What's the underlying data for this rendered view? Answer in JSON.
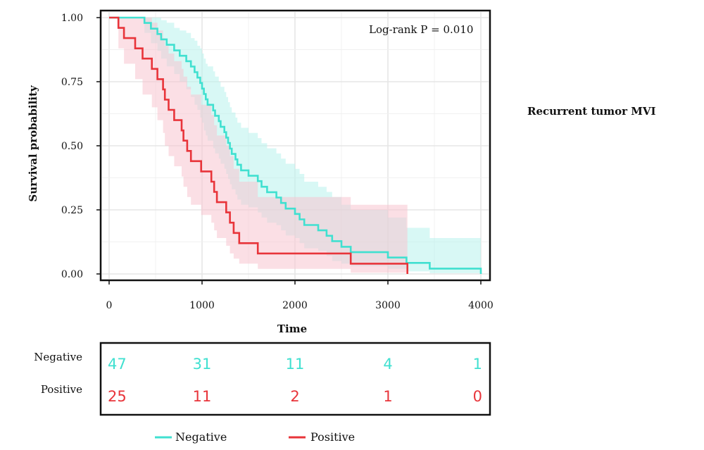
{
  "chart_data": {
    "type": "line",
    "subtype": "kaplan-meier",
    "title": "",
    "side_title": "Recurrent tumor MVI",
    "xlabel": "Time",
    "ylabel": "Survival probability",
    "xlim": [
      0,
      4000
    ],
    "ylim": [
      0,
      1
    ],
    "x_ticks": [
      "0",
      "1000",
      "2000",
      "3000",
      "4000"
    ],
    "y_ticks": [
      "0.00",
      "0.25",
      "0.50",
      "0.75",
      "1.00"
    ],
    "grid": true,
    "annotation": "Log-rank P = 0.010",
    "legend_position": "bottom",
    "series": [
      {
        "name": "Negative",
        "color": "#40E0D0",
        "band_color": "#B8F3EC",
        "steps": [
          [
            0,
            1.0
          ],
          [
            380,
            0.979
          ],
          [
            450,
            0.957
          ],
          [
            520,
            0.936
          ],
          [
            560,
            0.915
          ],
          [
            620,
            0.894
          ],
          [
            700,
            0.872
          ],
          [
            760,
            0.851
          ],
          [
            830,
            0.83
          ],
          [
            880,
            0.809
          ],
          [
            920,
            0.787
          ],
          [
            950,
            0.766
          ],
          [
            980,
            0.745
          ],
          [
            1000,
            0.723
          ],
          [
            1020,
            0.702
          ],
          [
            1040,
            0.681
          ],
          [
            1060,
            0.66
          ],
          [
            1120,
            0.638
          ],
          [
            1140,
            0.617
          ],
          [
            1180,
            0.596
          ],
          [
            1200,
            0.574
          ],
          [
            1240,
            0.553
          ],
          [
            1260,
            0.532
          ],
          [
            1280,
            0.511
          ],
          [
            1300,
            0.489
          ],
          [
            1320,
            0.468
          ],
          [
            1360,
            0.447
          ],
          [
            1380,
            0.426
          ],
          [
            1420,
            0.404
          ],
          [
            1500,
            0.383
          ],
          [
            1600,
            0.362
          ],
          [
            1640,
            0.34
          ],
          [
            1700,
            0.319
          ],
          [
            1800,
            0.298
          ],
          [
            1850,
            0.277
          ],
          [
            1900,
            0.255
          ],
          [
            2000,
            0.234
          ],
          [
            2050,
            0.213
          ],
          [
            2100,
            0.191
          ],
          [
            2250,
            0.17
          ],
          [
            2340,
            0.149
          ],
          [
            2400,
            0.128
          ],
          [
            2500,
            0.106
          ],
          [
            2600,
            0.085
          ],
          [
            3000,
            0.064
          ],
          [
            3200,
            0.043
          ],
          [
            3450,
            0.021
          ],
          [
            3980,
            0.021
          ],
          [
            4000,
            0.0
          ]
        ],
        "lower": [
          [
            0,
            1.0
          ],
          [
            380,
            0.94
          ],
          [
            450,
            0.9
          ],
          [
            520,
            0.87
          ],
          [
            560,
            0.84
          ],
          [
            620,
            0.81
          ],
          [
            700,
            0.78
          ],
          [
            760,
            0.75
          ],
          [
            830,
            0.72
          ],
          [
            880,
            0.69
          ],
          [
            920,
            0.66
          ],
          [
            950,
            0.64
          ],
          [
            980,
            0.61
          ],
          [
            1000,
            0.59
          ],
          [
            1020,
            0.56
          ],
          [
            1040,
            0.54
          ],
          [
            1060,
            0.52
          ],
          [
            1120,
            0.49
          ],
          [
            1140,
            0.47
          ],
          [
            1180,
            0.45
          ],
          [
            1200,
            0.43
          ],
          [
            1240,
            0.41
          ],
          [
            1260,
            0.39
          ],
          [
            1280,
            0.37
          ],
          [
            1300,
            0.35
          ],
          [
            1320,
            0.33
          ],
          [
            1360,
            0.31
          ],
          [
            1380,
            0.29
          ],
          [
            1420,
            0.27
          ],
          [
            1500,
            0.26
          ],
          [
            1600,
            0.24
          ],
          [
            1640,
            0.22
          ],
          [
            1700,
            0.2
          ],
          [
            1800,
            0.19
          ],
          [
            1850,
            0.17
          ],
          [
            1900,
            0.15
          ],
          [
            2000,
            0.14
          ],
          [
            2050,
            0.12
          ],
          [
            2100,
            0.1
          ],
          [
            2250,
            0.09
          ],
          [
            2340,
            0.07
          ],
          [
            2400,
            0.05
          ],
          [
            2500,
            0.04
          ],
          [
            2600,
            0.03
          ],
          [
            3000,
            0.02
          ],
          [
            3200,
            0.01
          ],
          [
            3450,
            0.003
          ],
          [
            4000,
            0.0
          ]
        ],
        "upper": [
          [
            0,
            1.0
          ],
          [
            380,
            1.0
          ],
          [
            450,
            1.0
          ],
          [
            520,
            1.0
          ],
          [
            560,
            0.99
          ],
          [
            620,
            0.98
          ],
          [
            700,
            0.96
          ],
          [
            760,
            0.95
          ],
          [
            830,
            0.94
          ],
          [
            880,
            0.92
          ],
          [
            920,
            0.91
          ],
          [
            950,
            0.89
          ],
          [
            980,
            0.88
          ],
          [
            1000,
            0.86
          ],
          [
            1020,
            0.84
          ],
          [
            1040,
            0.82
          ],
          [
            1060,
            0.81
          ],
          [
            1120,
            0.79
          ],
          [
            1140,
            0.77
          ],
          [
            1180,
            0.75
          ],
          [
            1200,
            0.73
          ],
          [
            1240,
            0.71
          ],
          [
            1260,
            0.69
          ],
          [
            1280,
            0.67
          ],
          [
            1300,
            0.65
          ],
          [
            1320,
            0.63
          ],
          [
            1360,
            0.61
          ],
          [
            1380,
            0.59
          ],
          [
            1420,
            0.57
          ],
          [
            1500,
            0.55
          ],
          [
            1600,
            0.53
          ],
          [
            1640,
            0.51
          ],
          [
            1700,
            0.49
          ],
          [
            1800,
            0.47
          ],
          [
            1850,
            0.45
          ],
          [
            1900,
            0.43
          ],
          [
            2000,
            0.41
          ],
          [
            2050,
            0.39
          ],
          [
            2100,
            0.36
          ],
          [
            2250,
            0.34
          ],
          [
            2340,
            0.32
          ],
          [
            2400,
            0.3
          ],
          [
            2500,
            0.27
          ],
          [
            2600,
            0.25
          ],
          [
            3000,
            0.22
          ],
          [
            3200,
            0.18
          ],
          [
            3450,
            0.14
          ],
          [
            4000,
            0.14
          ]
        ]
      },
      {
        "name": "Positive",
        "color": "#E8343A",
        "band_color": "#F8C4D0",
        "steps": [
          [
            0,
            1.0
          ],
          [
            100,
            0.96
          ],
          [
            160,
            0.92
          ],
          [
            280,
            0.88
          ],
          [
            360,
            0.84
          ],
          [
            460,
            0.8
          ],
          [
            520,
            0.76
          ],
          [
            580,
            0.72
          ],
          [
            600,
            0.68
          ],
          [
            640,
            0.64
          ],
          [
            700,
            0.6
          ],
          [
            780,
            0.56
          ],
          [
            800,
            0.52
          ],
          [
            840,
            0.48
          ],
          [
            880,
            0.44
          ],
          [
            990,
            0.4
          ],
          [
            1100,
            0.36
          ],
          [
            1130,
            0.32
          ],
          [
            1160,
            0.28
          ],
          [
            1260,
            0.24
          ],
          [
            1300,
            0.2
          ],
          [
            1340,
            0.16
          ],
          [
            1400,
            0.12
          ],
          [
            1600,
            0.08
          ],
          [
            2400,
            0.08
          ],
          [
            2600,
            0.04
          ],
          [
            3200,
            0.04
          ],
          [
            3210,
            0.0
          ]
        ],
        "lower": [
          [
            0,
            1.0
          ],
          [
            100,
            0.88
          ],
          [
            160,
            0.82
          ],
          [
            280,
            0.76
          ],
          [
            360,
            0.7
          ],
          [
            460,
            0.65
          ],
          [
            520,
            0.6
          ],
          [
            580,
            0.55
          ],
          [
            600,
            0.5
          ],
          [
            640,
            0.46
          ],
          [
            700,
            0.42
          ],
          [
            780,
            0.38
          ],
          [
            800,
            0.34
          ],
          [
            840,
            0.3
          ],
          [
            880,
            0.27
          ],
          [
            990,
            0.23
          ],
          [
            1100,
            0.2
          ],
          [
            1130,
            0.17
          ],
          [
            1160,
            0.14
          ],
          [
            1260,
            0.11
          ],
          [
            1300,
            0.08
          ],
          [
            1340,
            0.06
          ],
          [
            1400,
            0.04
          ],
          [
            1600,
            0.02
          ],
          [
            2400,
            0.02
          ],
          [
            2600,
            0.005
          ],
          [
            3210,
            0.0
          ]
        ],
        "upper": [
          [
            0,
            1.0
          ],
          [
            100,
            1.0
          ],
          [
            160,
            1.0
          ],
          [
            280,
            1.0
          ],
          [
            360,
            1.0
          ],
          [
            460,
            0.98
          ],
          [
            520,
            0.95
          ],
          [
            580,
            0.92
          ],
          [
            600,
            0.89
          ],
          [
            640,
            0.86
          ],
          [
            700,
            0.83
          ],
          [
            780,
            0.8
          ],
          [
            800,
            0.77
          ],
          [
            840,
            0.73
          ],
          [
            880,
            0.7
          ],
          [
            990,
            0.66
          ],
          [
            1100,
            0.62
          ],
          [
            1130,
            0.58
          ],
          [
            1160,
            0.54
          ],
          [
            1260,
            0.5
          ],
          [
            1300,
            0.46
          ],
          [
            1340,
            0.41
          ],
          [
            1400,
            0.36
          ],
          [
            1600,
            0.3
          ],
          [
            2400,
            0.3
          ],
          [
            2600,
            0.27
          ],
          [
            3210,
            0.27
          ]
        ]
      }
    ]
  },
  "risk_table": {
    "rows": [
      {
        "label": "Negative",
        "color": "#40E0D0",
        "values": [
          "47",
          "31",
          "11",
          "4",
          "1"
        ]
      },
      {
        "label": "Positive",
        "color": "#E8343A",
        "values": [
          "25",
          "11",
          "2",
          "1",
          "0"
        ]
      }
    ]
  },
  "legend": [
    {
      "label": "Negative",
      "color": "#40E0D0"
    },
    {
      "label": "Positive",
      "color": "#E8343A"
    }
  ]
}
